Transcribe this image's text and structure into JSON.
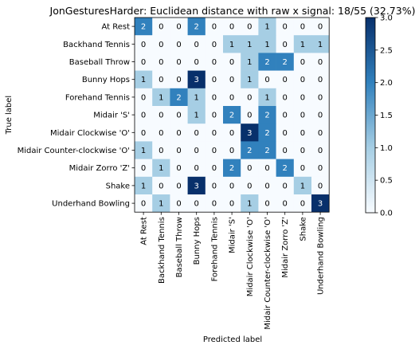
{
  "chart_data": {
    "type": "heatmap",
    "title": "JonGesturesHarder: Euclidean distance with raw x signal: 18/55 (32.73%)",
    "xlabel": "Predicted label",
    "ylabel": "True label",
    "labels": [
      "At Rest",
      "Backhand Tennis",
      "Baseball Throw",
      "Bunny Hops",
      "Forehand Tennis",
      "Midair 'S'",
      "Midair Clockwise 'O'",
      "Midair Counter-clockwise 'O'",
      "Midair Zorro 'Z'",
      "Shake",
      "Underhand Bowling"
    ],
    "matrix": [
      [
        2,
        0,
        0,
        2,
        0,
        0,
        0,
        1,
        0,
        0,
        0
      ],
      [
        0,
        0,
        0,
        0,
        0,
        1,
        1,
        1,
        0,
        1,
        1
      ],
      [
        0,
        0,
        0,
        0,
        0,
        0,
        1,
        2,
        2,
        0,
        0
      ],
      [
        1,
        0,
        0,
        3,
        0,
        0,
        1,
        0,
        0,
        0,
        0
      ],
      [
        0,
        1,
        2,
        1,
        0,
        0,
        0,
        1,
        0,
        0,
        0
      ],
      [
        0,
        0,
        0,
        1,
        0,
        2,
        0,
        2,
        0,
        0,
        0
      ],
      [
        0,
        0,
        0,
        0,
        0,
        0,
        3,
        2,
        0,
        0,
        0
      ],
      [
        1,
        0,
        0,
        0,
        0,
        0,
        2,
        2,
        0,
        0,
        0
      ],
      [
        0,
        1,
        0,
        0,
        0,
        2,
        0,
        0,
        2,
        0,
        0
      ],
      [
        1,
        0,
        0,
        3,
        0,
        0,
        0,
        0,
        0,
        1,
        0
      ],
      [
        0,
        1,
        0,
        0,
        0,
        0,
        1,
        0,
        0,
        0,
        3
      ]
    ],
    "colorbar": {
      "min": 0.0,
      "max": 3.0,
      "ticks": [
        "0.0",
        "0.5",
        "1.0",
        "1.5",
        "2.0",
        "2.5",
        "3.0"
      ],
      "colormap": "Blues"
    },
    "grid": false
  }
}
